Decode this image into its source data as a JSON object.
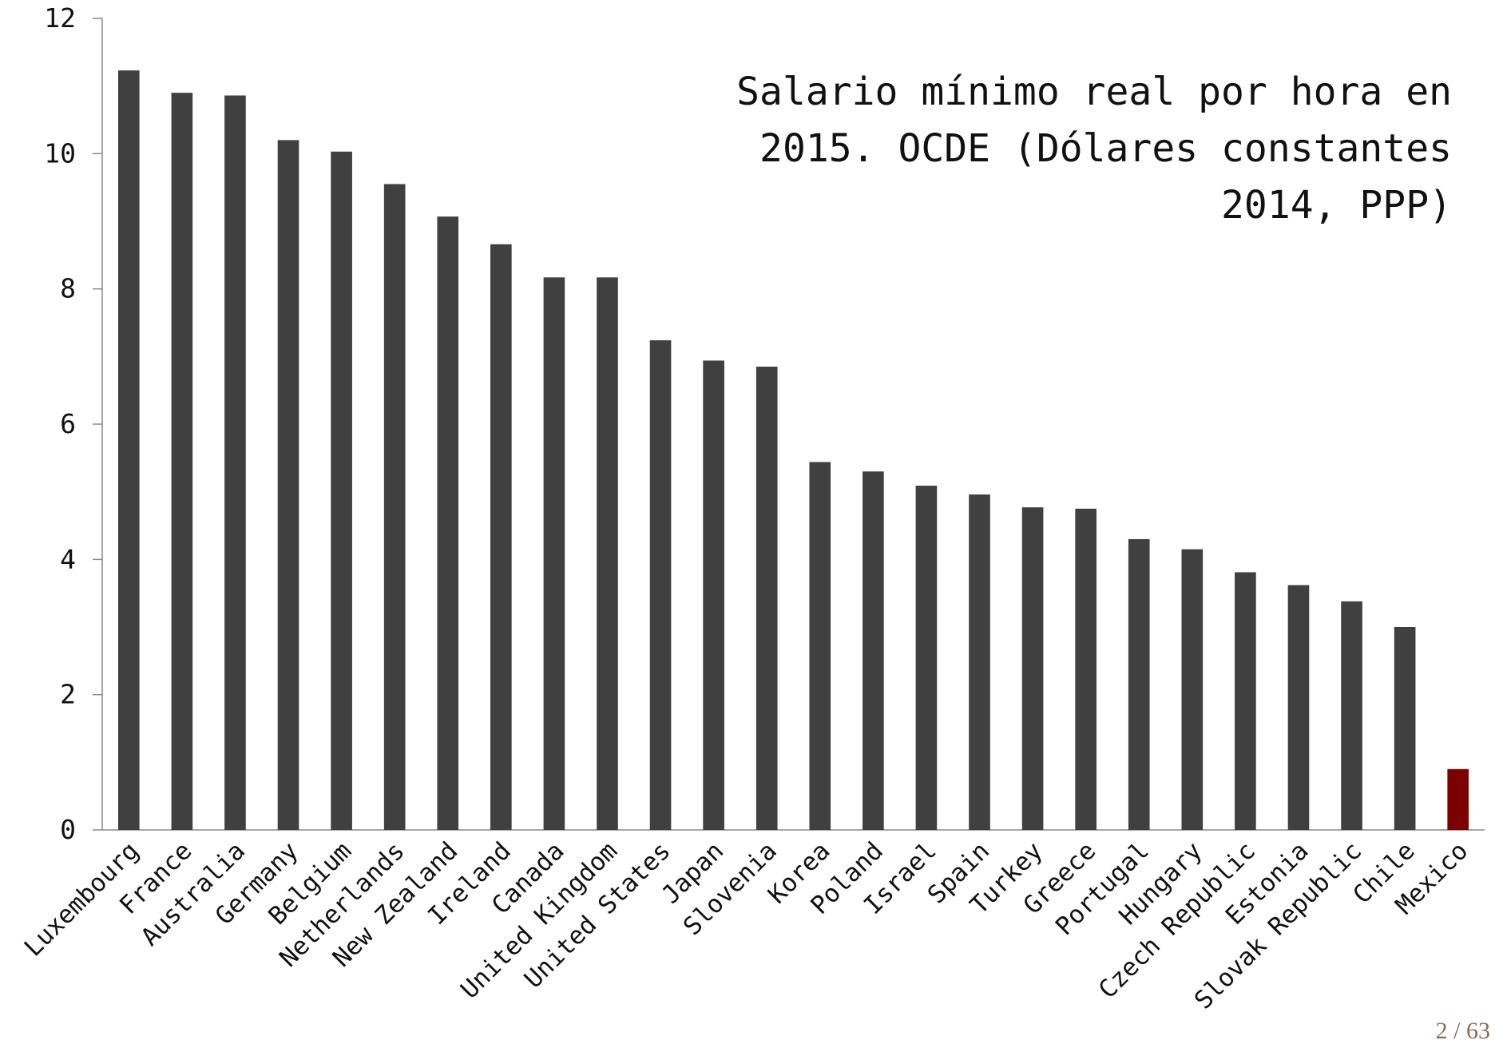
{
  "chart_data": {
    "type": "bar",
    "title": [
      "Salario mínimo real por hora en",
      "2015. OCDE (Dólares constantes",
      "2014, PPP)"
    ],
    "categories": [
      "Luxembourg",
      "France",
      "Australia",
      "Germany",
      "Belgium",
      "Netherlands",
      "New Zealand",
      "Ireland",
      "Canada",
      "United Kingdom",
      "United States",
      "Japan",
      "Slovenia",
      "Korea",
      "Poland",
      "Israel",
      "Spain",
      "Turkey",
      "Greece",
      "Portugal",
      "Hungary",
      "Czech Republic",
      "Estonia",
      "Slovak Republic",
      "Chile",
      "Mexico"
    ],
    "values": [
      11.23,
      10.9,
      10.86,
      10.2,
      10.03,
      9.55,
      9.07,
      8.66,
      8.17,
      8.17,
      7.24,
      6.94,
      6.85,
      5.44,
      5.3,
      5.09,
      4.96,
      4.77,
      4.75,
      4.3,
      4.15,
      3.81,
      3.62,
      3.38,
      3.0,
      0.9
    ],
    "colors": [
      "#404040",
      "#404040",
      "#404040",
      "#404040",
      "#404040",
      "#404040",
      "#404040",
      "#404040",
      "#404040",
      "#404040",
      "#404040",
      "#404040",
      "#404040",
      "#404040",
      "#404040",
      "#404040",
      "#404040",
      "#404040",
      "#404040",
      "#404040",
      "#404040",
      "#404040",
      "#404040",
      "#404040",
      "#404040",
      "#7b0000"
    ],
    "ylim": [
      0,
      12
    ],
    "yticks": [
      0,
      2,
      4,
      6,
      8,
      10,
      12
    ],
    "grid": false
  },
  "page_number": "2 / 63"
}
